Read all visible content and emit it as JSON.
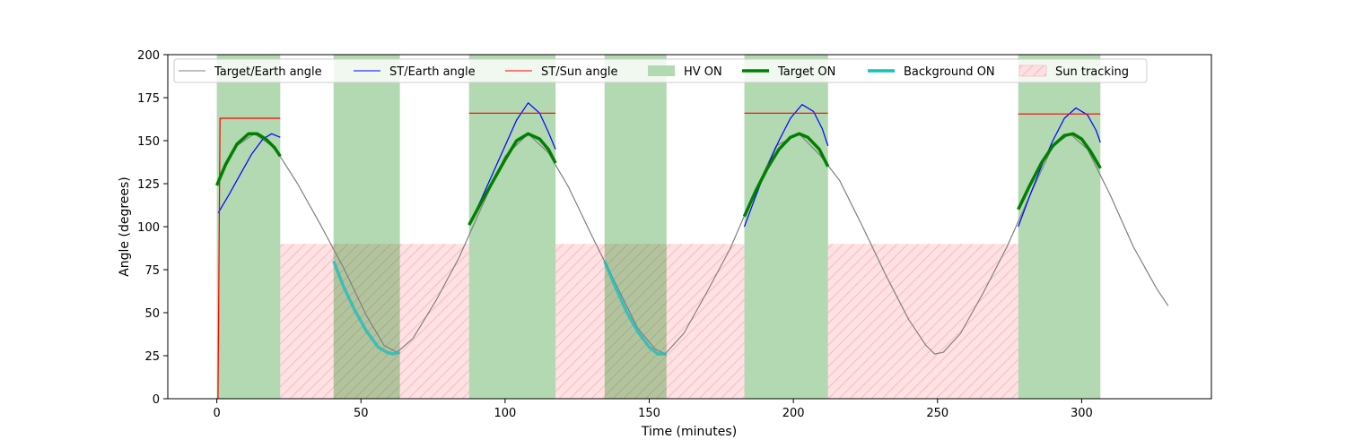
{
  "chart_data": {
    "type": "line",
    "title": "",
    "xlabel": "Time (minutes)",
    "ylabel": "Angle (degrees)",
    "xlim": [
      -17,
      345
    ],
    "ylim": [
      0,
      200
    ],
    "x_ticks": [
      0,
      50,
      100,
      150,
      200,
      250,
      300
    ],
    "y_ticks": [
      0,
      25,
      50,
      75,
      100,
      125,
      150,
      175,
      200
    ],
    "grid": false,
    "legend_position": "top (inside plot, single row)",
    "colors": {
      "target_earth": "#808080",
      "st_earth": "#0000ff",
      "st_sun": "#ff0000",
      "hv_on": "#b3d9b3",
      "target_on": "#008000",
      "background_on": "#17bebe",
      "sun_tracking_fill": "#ffdfe2",
      "sun_tracking_hatch": "#f4b2b8"
    },
    "legend": [
      {
        "label": "Target/Earth angle",
        "kind": "line",
        "color": "#808080",
        "width": 1
      },
      {
        "label": "ST/Earth angle",
        "kind": "line",
        "color": "#0000ff",
        "width": 1
      },
      {
        "label": "ST/Sun angle",
        "kind": "line",
        "color": "#ff0000",
        "width": 1
      },
      {
        "label": "HV ON",
        "kind": "patch",
        "color": "#b3d9b3"
      },
      {
        "label": "Target ON",
        "kind": "line",
        "color": "#008000",
        "width": 3.5
      },
      {
        "label": "Background ON",
        "kind": "line",
        "color": "#17bebe",
        "width": 3.5
      },
      {
        "label": "Sun tracking",
        "kind": "hatch",
        "color": "#ffdfe2"
      }
    ],
    "hv_on_intervals": [
      [
        0,
        22
      ],
      [
        40.5,
        63.5
      ],
      [
        87.5,
        117.5
      ],
      [
        134.5,
        156
      ],
      [
        183,
        212
      ],
      [
        278,
        306.5
      ]
    ],
    "sun_tracking_intervals": [
      [
        22,
        87.5
      ],
      [
        117.5,
        183
      ],
      [
        212,
        278
      ]
    ],
    "sun_tracking_ymax": 90,
    "series": [
      {
        "name": "Target/Earth angle",
        "color": "#808080",
        "x": [
          0,
          6,
          13,
          20,
          28,
          36,
          44,
          52,
          58,
          62.5,
          68,
          76,
          84,
          92,
          100,
          108,
          115,
          122,
          130,
          138,
          146,
          152,
          155.5,
          162,
          170,
          178,
          186,
          194,
          202,
          209,
          216,
          224,
          232,
          240,
          246,
          249,
          252,
          258,
          266,
          274,
          282,
          290,
          296,
          302,
          310,
          318,
          326,
          330
        ],
        "y": [
          124,
          146,
          154,
          146,
          125,
          101,
          76,
          48,
          31,
          27,
          35,
          57,
          82,
          112,
          141,
          154,
          143,
          123,
          95,
          68,
          41,
          29,
          26,
          38,
          62,
          87,
          118,
          147,
          154,
          142,
          127,
          100,
          72,
          46,
          31,
          26,
          27,
          38,
          62,
          88,
          118,
          147,
          154,
          145,
          118,
          88,
          64,
          54
        ]
      },
      {
        "name": "ST/Earth angle",
        "color": "#0000ff",
        "segments": [
          {
            "x": [
              0.5,
              4,
              8,
              12,
              16,
              19,
              22
            ],
            "y": [
              108,
              118,
              130,
              142,
              151,
              154,
              152
            ]
          },
          {
            "x": [
              87.5,
              92,
              96,
              100,
              104,
              108,
              112,
              115,
              117.5
            ],
            "y": [
              101,
              117,
              132,
              147,
              162,
              172,
              166,
              155,
              145
            ]
          },
          {
            "x": [
              183,
              187,
              191,
              195,
              199,
              203,
              207,
              210,
              212
            ],
            "y": [
              100,
              118,
              135,
              150,
              163,
              171,
              167,
              157,
              147
            ]
          },
          {
            "x": [
              278,
              282,
              286,
              290,
              294,
              298,
              302,
              305,
              306.5
            ],
            "y": [
              100,
              118,
              135,
              150,
              163,
              169,
              165,
              156,
              149
            ]
          }
        ]
      },
      {
        "name": "ST/Sun angle",
        "color": "#ff0000",
        "segments": [
          {
            "x": [
              0,
              0.4,
              0.8,
              1.1,
              22
            ],
            "y": [
              0,
              0,
              90,
              163,
              163
            ]
          },
          {
            "x": [
              87.5,
              117.5
            ],
            "y": [
              166,
              166
            ]
          },
          {
            "x": [
              183,
              212
            ],
            "y": [
              166,
              166
            ]
          },
          {
            "x": [
              278,
              306.5
            ],
            "y": [
              165.5,
              165.5
            ]
          }
        ]
      },
      {
        "name": "Target ON",
        "color": "#008000",
        "segments": [
          {
            "x": [
              0,
              3,
              7,
              11,
              14,
              17,
              20,
              22
            ],
            "y": [
              124,
              136,
              148,
              154,
              154,
              151,
              146,
              141
            ]
          },
          {
            "x": [
              87.5,
              92,
              96,
              100,
              104,
              108,
              112,
              115,
              117.5
            ],
            "y": [
              101,
              115,
              127,
              139,
              150,
              154,
              151,
              145,
              137
            ]
          },
          {
            "x": [
              183,
              187,
              191,
              195,
              199,
              202,
              205,
              209,
              212
            ],
            "y": [
              106,
              121,
              134,
              145,
              152,
              154,
              152,
              145,
              135
            ]
          },
          {
            "x": [
              278,
              282,
              286,
              290,
              294,
              297,
              300,
              303,
              306.5
            ],
            "y": [
              110,
              124,
              137,
              147,
              153,
              154,
              151,
              144,
              134
            ]
          }
        ]
      },
      {
        "name": "Background ON",
        "color": "#17bebe",
        "segments": [
          {
            "x": [
              40.5,
              44,
              48,
              52,
              56,
              59,
              61,
              63.5
            ],
            "y": [
              80,
              65,
              51,
              39,
              30,
              27,
              26,
              27
            ]
          },
          {
            "x": [
              134.5,
              138,
              142,
              146,
              150,
              153,
              156
            ],
            "y": [
              80,
              66,
              51,
              39,
              30,
              26,
              26
            ]
          }
        ]
      }
    ]
  }
}
